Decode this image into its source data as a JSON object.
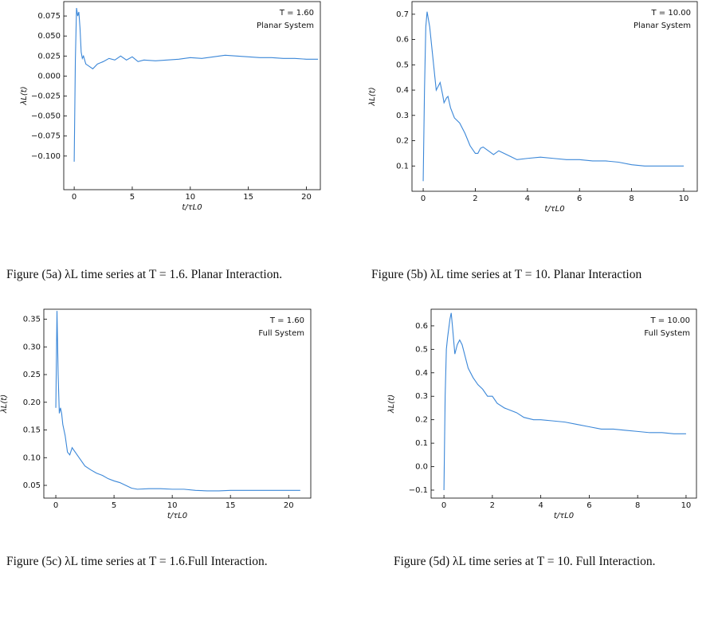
{
  "chart_data": [
    {
      "type": "line",
      "y_label": "λL(t)",
      "x_label": "t/τL0",
      "annotations": [
        "T = 1.60",
        "Planar System"
      ],
      "color": "#3b87d8",
      "caption": "Figure (5a) λL time series at T = 1.6. Planar Interaction.",
      "x": [
        0,
        0.1,
        0.2,
        0.3,
        0.4,
        0.5,
        0.6,
        0.7,
        0.8,
        1,
        1.3,
        1.6,
        2,
        2.5,
        3,
        3.5,
        4,
        4.5,
        5,
        5.5,
        6,
        7,
        8,
        9,
        10,
        11,
        12,
        13,
        14,
        15,
        16,
        17,
        18,
        19,
        20,
        21
      ],
      "values": [
        -0.107,
        0.02,
        0.085,
        0.075,
        0.08,
        0.06,
        0.03,
        0.022,
        0.025,
        0.015,
        0.012,
        0.009,
        0.015,
        0.018,
        0.022,
        0.02,
        0.025,
        0.02,
        0.024,
        0.018,
        0.02,
        0.019,
        0.02,
        0.021,
        0.023,
        0.022,
        0.024,
        0.026,
        0.025,
        0.024,
        0.023,
        0.023,
        0.022,
        0.022,
        0.021,
        0.021
      ],
      "xlim": [
        -0.9,
        21.2
      ],
      "xticks": [
        0,
        5,
        10,
        15,
        20
      ],
      "ylim": [
        -0.142,
        0.093
      ],
      "yticks": [
        {
          "value": -0.1,
          "label": "−0.100"
        },
        {
          "value": -0.075,
          "label": "−0.075"
        },
        {
          "value": -0.05,
          "label": "−0.050"
        },
        {
          "value": -0.025,
          "label": "−0.025"
        },
        {
          "value": 0,
          "label": "0.000"
        },
        {
          "value": 0.025,
          "label": "0.025"
        },
        {
          "value": 0.05,
          "label": "0.050"
        },
        0.075
      ]
    },
    {
      "type": "line",
      "y_label": "λL(t)",
      "x_label": "t/τL0",
      "annotations": [
        "T = 10.00",
        "Planar System"
      ],
      "color": "#3b87d8",
      "caption": "Figure (5b) λL time series at T = 10. Planar Interaction",
      "x": [
        0,
        0.05,
        0.1,
        0.15,
        0.25,
        0.35,
        0.45,
        0.5,
        0.6,
        0.65,
        0.75,
        0.8,
        0.9,
        0.95,
        1.05,
        1.2,
        1.4,
        1.6,
        1.8,
        2,
        2.1,
        2.2,
        2.3,
        2.5,
        2.7,
        2.9,
        3.1,
        3.4,
        3.6,
        4,
        4.5,
        5,
        5.5,
        6,
        6.5,
        7,
        7.5,
        8,
        8.5,
        9,
        9.5,
        10
      ],
      "values": [
        0.04,
        0.4,
        0.65,
        0.71,
        0.65,
        0.55,
        0.45,
        0.4,
        0.42,
        0.43,
        0.38,
        0.35,
        0.37,
        0.375,
        0.33,
        0.29,
        0.27,
        0.23,
        0.18,
        0.15,
        0.15,
        0.17,
        0.175,
        0.16,
        0.145,
        0.16,
        0.15,
        0.135,
        0.125,
        0.13,
        0.135,
        0.13,
        0.125,
        0.125,
        0.12,
        0.12,
        0.115,
        0.105,
        0.1,
        0.1,
        0.1,
        0.1
      ],
      "xlim": [
        -0.43,
        10.52
      ],
      "xticks": [
        0,
        2,
        4,
        6,
        8,
        10
      ],
      "ylim": [
        0,
        0.75
      ],
      "yticks": [
        0.1,
        0.2,
        0.3,
        0.4,
        0.5,
        0.6,
        0.7
      ]
    },
    {
      "type": "line",
      "y_label": "λL(t)",
      "x_label": "t/τL0",
      "annotations": [
        "T = 1.60",
        "Full System"
      ],
      "color": "#3b87d8",
      "caption": "Figure (5c) λL time series at T = 1.6.Full Interaction.",
      "x": [
        0,
        0.1,
        0.2,
        0.3,
        0.4,
        0.5,
        0.6,
        0.8,
        1,
        1.2,
        1.4,
        1.6,
        2,
        2.5,
        3,
        3.5,
        4,
        4.5,
        5,
        5.5,
        6,
        6.5,
        7,
        8,
        9,
        10,
        11,
        12,
        13,
        14,
        15,
        16,
        17,
        18,
        19,
        20,
        21
      ],
      "values": [
        0.19,
        0.365,
        0.25,
        0.18,
        0.19,
        0.18,
        0.16,
        0.14,
        0.11,
        0.105,
        0.118,
        0.112,
        0.1,
        0.085,
        0.078,
        0.072,
        0.068,
        0.062,
        0.058,
        0.055,
        0.05,
        0.045,
        0.043,
        0.044,
        0.044,
        0.043,
        0.043,
        0.041,
        0.04,
        0.04,
        0.041,
        0.041,
        0.041,
        0.041,
        0.041,
        0.041,
        0.041
      ],
      "xlim": [
        -1.03,
        21.9
      ],
      "xticks": [
        0,
        5,
        10,
        15,
        20
      ],
      "ylim": [
        0.027,
        0.368
      ],
      "yticks": [
        0.05,
        {
          "value": 0.1,
          "label": "0.10"
        },
        0.15,
        {
          "value": 0.2,
          "label": "0.20"
        },
        0.25,
        {
          "value": 0.3,
          "label": "0.30"
        },
        0.35
      ]
    },
    {
      "type": "line",
      "y_label": "λL(t)",
      "x_label": "t/τL0",
      "annotations": [
        "T = 10.00",
        "Full System"
      ],
      "color": "#3b87d8",
      "caption": "Figure (5d) λL time series at T = 10. Full Interaction.",
      "x": [
        0,
        0.05,
        0.1,
        0.15,
        0.25,
        0.3,
        0.35,
        0.45,
        0.55,
        0.65,
        0.75,
        0.9,
        1,
        1.2,
        1.4,
        1.6,
        1.8,
        2,
        2.2,
        2.5,
        3,
        3.3,
        3.7,
        4,
        4.5,
        5,
        5.5,
        6,
        6.5,
        7,
        7.5,
        8,
        8.5,
        9,
        9.5,
        10
      ],
      "values": [
        -0.1,
        0.3,
        0.5,
        0.55,
        0.63,
        0.655,
        0.6,
        0.48,
        0.52,
        0.54,
        0.52,
        0.46,
        0.42,
        0.38,
        0.35,
        0.33,
        0.3,
        0.3,
        0.27,
        0.25,
        0.23,
        0.21,
        0.2,
        0.2,
        0.195,
        0.19,
        0.18,
        0.17,
        0.16,
        0.16,
        0.155,
        0.15,
        0.145,
        0.145,
        0.14,
        0.14
      ],
      "xlim": [
        -0.53,
        10.43
      ],
      "xticks": [
        0,
        2,
        4,
        6,
        8,
        10
      ],
      "ylim": [
        -0.134,
        0.671
      ],
      "yticks": [
        {
          "value": -0.1,
          "label": "−0.1"
        },
        {
          "value": 0,
          "label": "0.0"
        },
        0.1,
        0.2,
        0.3,
        0.4,
        0.5,
        0.6
      ]
    }
  ]
}
